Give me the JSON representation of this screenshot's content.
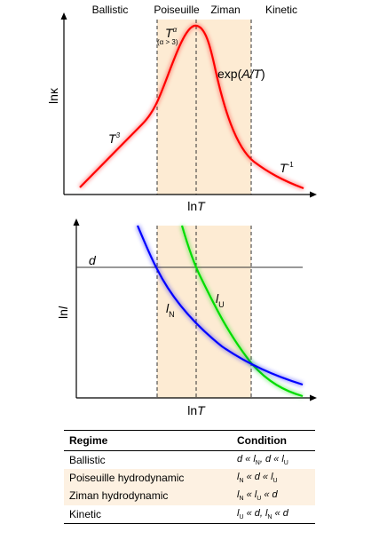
{
  "regimes": [
    "Ballistic",
    "Poiseuille",
    "Ziman",
    "Kinetic"
  ],
  "top_plot": {
    "ylabel": "lnκ",
    "xlabel_prefix": "ln",
    "xlabel_var": "T",
    "label_t3_base": "T",
    "label_t3_exp": "3",
    "label_talpha_base": "T",
    "label_talpha_exp": "α",
    "label_talpha_cond": "(α > 3)",
    "label_exp": "exp(",
    "label_exp_var": "A/T",
    "label_exp_close": ")",
    "label_tinv_base": "T",
    "label_tinv_exp": "-1"
  },
  "bottom_plot": {
    "ylabel_prefix": "ln",
    "ylabel_var": "l",
    "xlabel_prefix": "ln",
    "xlabel_var": "T",
    "label_d": "d",
    "label_lN_base": "l",
    "label_lN_sub": "N",
    "label_lU_base": "l",
    "label_lU_sub": "U"
  },
  "colors": {
    "kappa_curve": "#ff0000",
    "lN_curve": "#0000ff",
    "lU_curve": "#00dd00",
    "shade": "#fdebd3"
  },
  "table": {
    "header_regime": "Regime",
    "header_condition": "Condition",
    "rows": [
      {
        "regime": "Ballistic"
      },
      {
        "regime": "Poiseuille hydrodynamic"
      },
      {
        "regime": "Ziman hydrodynamic"
      },
      {
        "regime": "Kinetic"
      }
    ],
    "cond": {
      "r0": {
        "a": "d « l",
        "a_sub": "N",
        "b": ", d « l",
        "b_sub": "U"
      },
      "r1": {
        "a": "l",
        "a_sub": "N",
        "b": " « d « l",
        "b_sub": "U"
      },
      "r2": {
        "a": "l",
        "a_sub": "N",
        "b": " « l",
        "b_sub": "U",
        "c": " « d"
      },
      "r3": {
        "a": "l",
        "a_sub": "U",
        "b": " « d, l",
        "b_sub": "N",
        "c": " « d"
      }
    }
  }
}
